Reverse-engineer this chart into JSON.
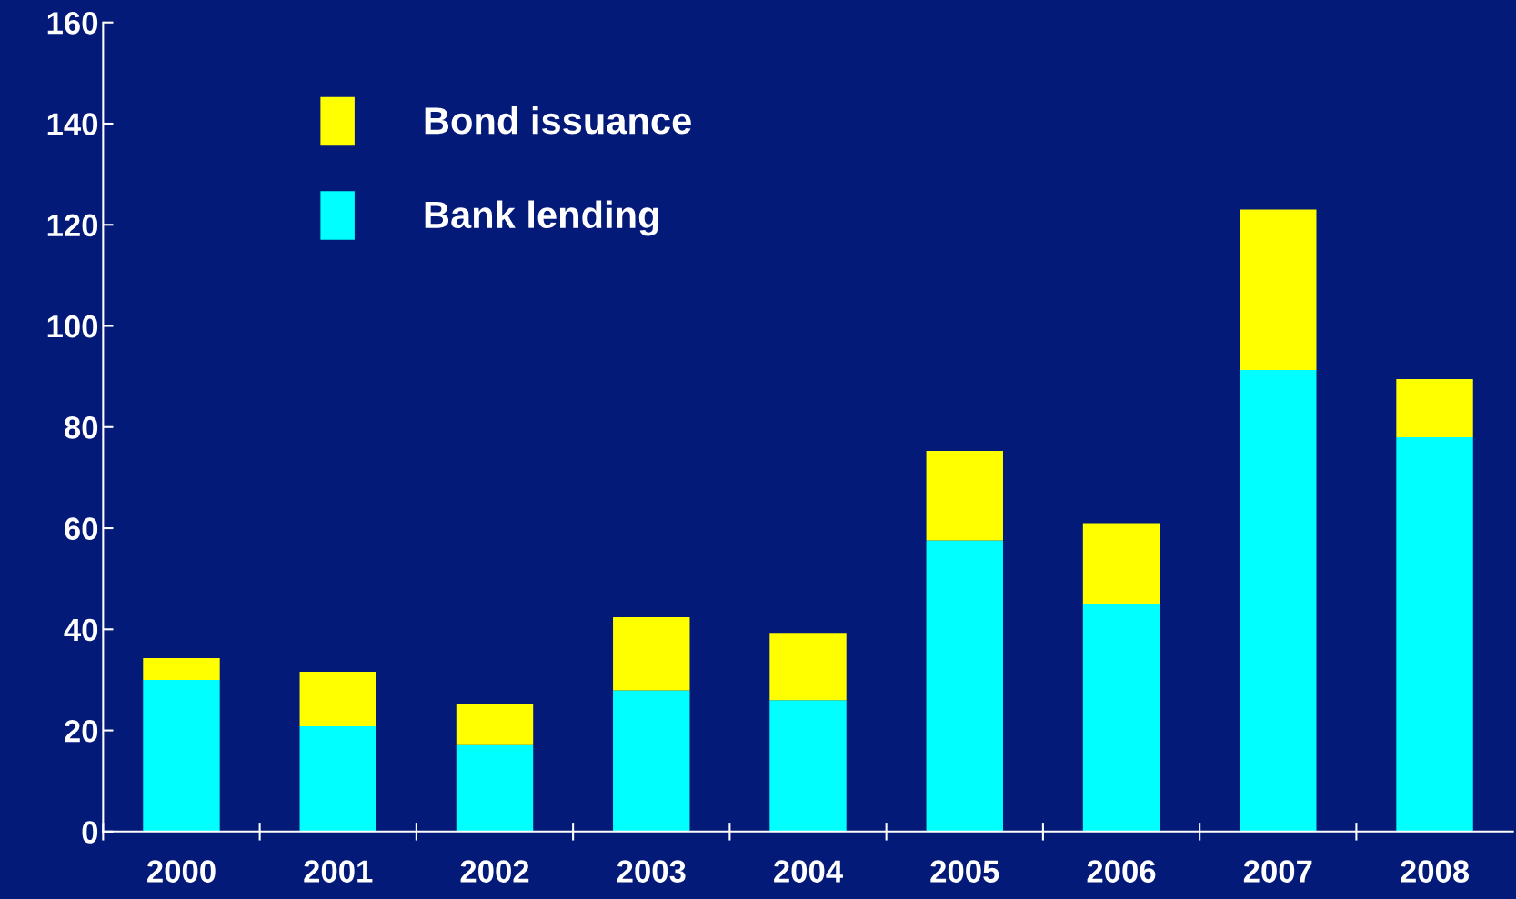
{
  "chart_data": {
    "type": "bar",
    "stacked": true,
    "categories": [
      "2000",
      "2001",
      "2002",
      "2003",
      "2004",
      "2005",
      "2006",
      "2007",
      "2008"
    ],
    "series": [
      {
        "name": "Bank lending",
        "color": "#00ffff",
        "values": [
          30.0,
          20.8,
          17.1,
          27.9,
          26.0,
          57.6,
          44.9,
          91.3,
          78.0
        ]
      },
      {
        "name": "Bond issuance",
        "color": "#ffff00",
        "values": [
          4.3,
          10.8,
          8.1,
          14.5,
          13.3,
          17.7,
          16.1,
          31.7,
          11.5
        ]
      }
    ],
    "ylim": [
      0,
      160
    ],
    "yticks": [
      0,
      20,
      40,
      60,
      80,
      100,
      120,
      140,
      160
    ],
    "legend": "top left"
  }
}
